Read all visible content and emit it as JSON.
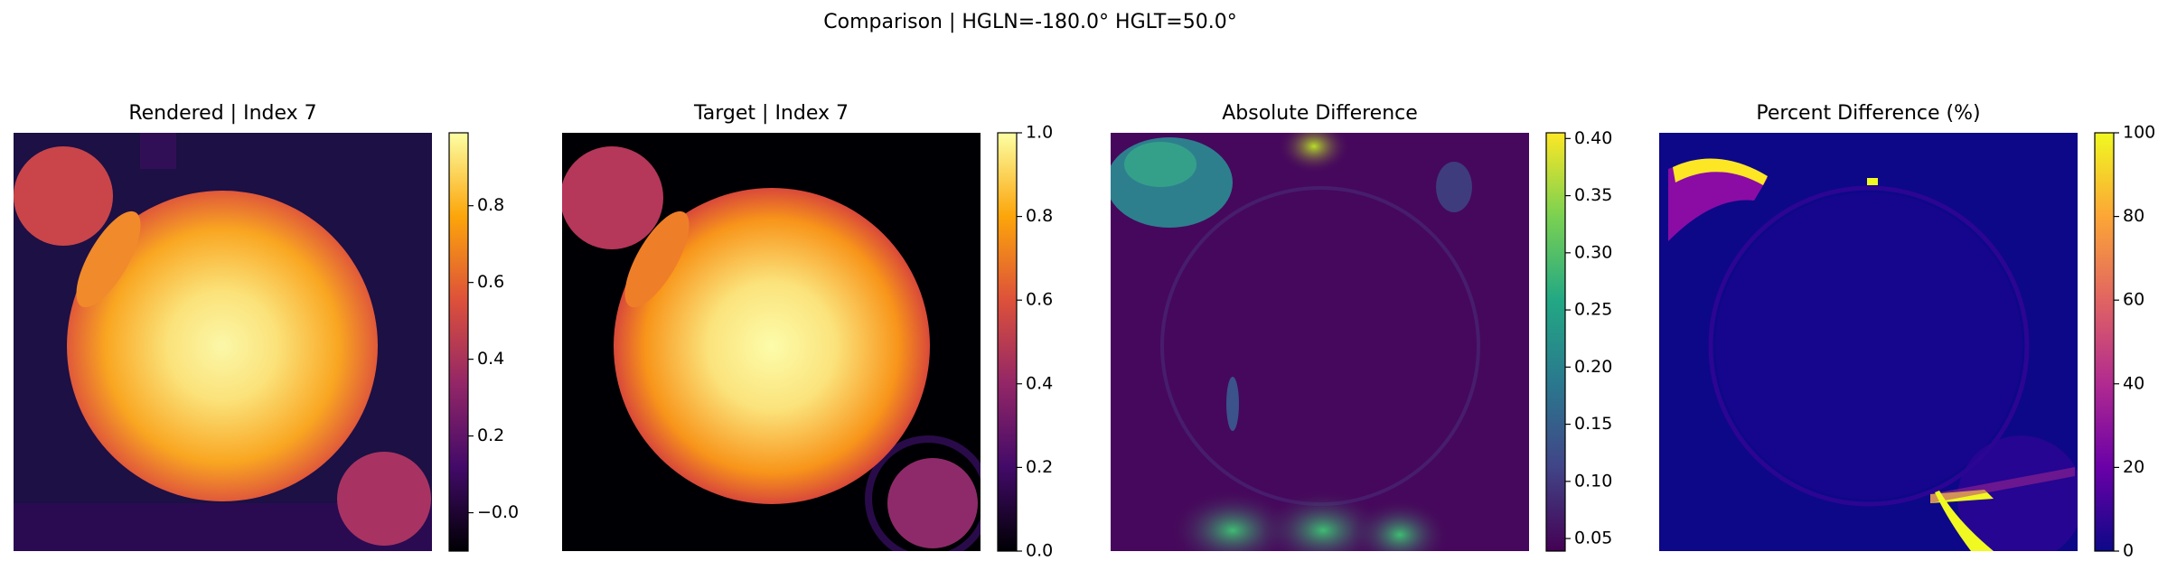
{
  "title": "Comparison | HGLN=-180.0° HGLT=50.0°",
  "chart_data": [
    {
      "type": "image",
      "title": "Rendered | Index 7",
      "colormap": "inferno",
      "ylim": [
        -0.1,
        0.99
      ],
      "yticks": [
        {
          "value": 0,
          "label": "−0.0"
        },
        0.2,
        0.4,
        0.6,
        0.8
      ]
    },
    {
      "type": "image",
      "title": "Target | Index 7",
      "colormap": "inferno",
      "ylim": [
        0,
        1
      ],
      "yticks": [
        {
          "value": 0,
          "label": "0.0"
        },
        0.2,
        0.4,
        0.6,
        0.8,
        {
          "value": 1,
          "label": "1.0"
        }
      ]
    },
    {
      "type": "image",
      "title": "Absolute Difference",
      "colormap": "viridis",
      "ylim": [
        0.039,
        0.405
      ],
      "yticks": [
        0.05,
        {
          "value": 0.1,
          "label": "0.10"
        },
        0.15,
        {
          "value": 0.2,
          "label": "0.20"
        },
        0.25,
        {
          "value": 0.3,
          "label": "0.30"
        },
        0.35,
        {
          "value": 0.4,
          "label": "0.40"
        }
      ]
    },
    {
      "type": "image",
      "title": "Percent Difference (%)",
      "colormap": "plasma",
      "ylim": [
        0,
        100
      ],
      "yticks": [
        0,
        20,
        40,
        60,
        80,
        100
      ]
    }
  ]
}
